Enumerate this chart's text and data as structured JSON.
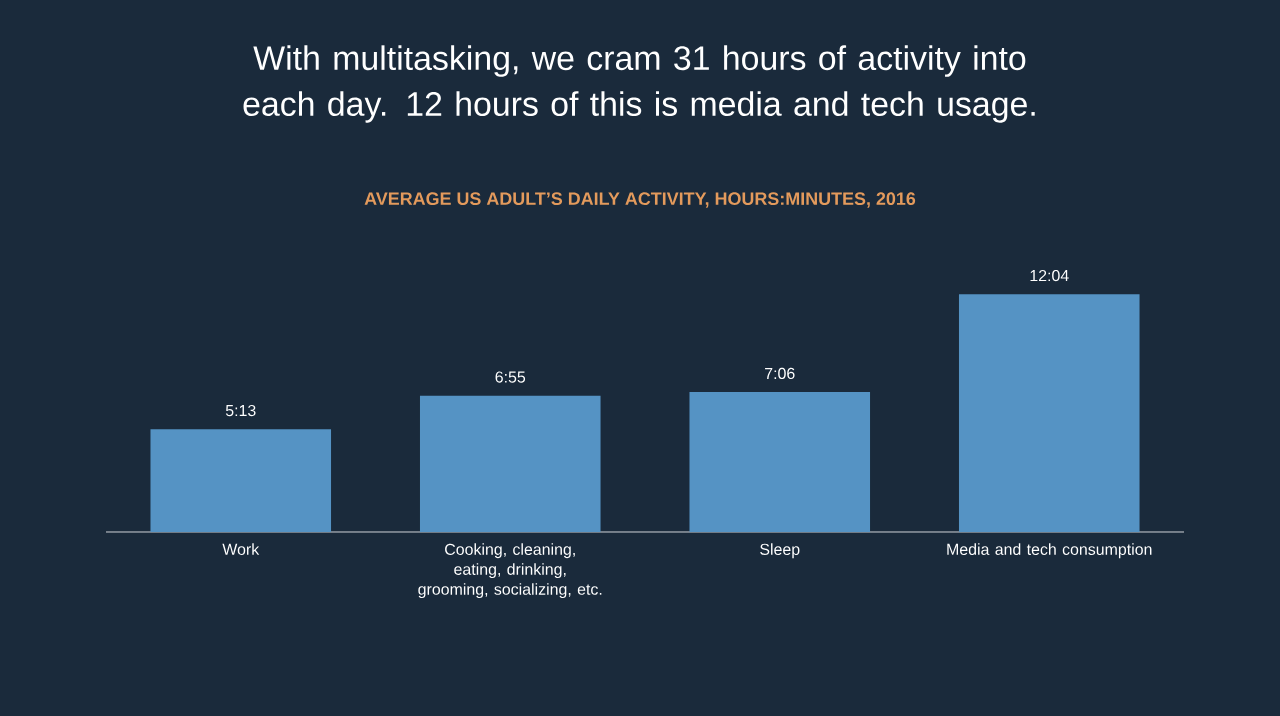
{
  "chart_data": {
    "type": "bar",
    "title": "With multitasking, we cram 31 hours of activity into each day. 12 hours of this is media and tech usage.",
    "subtitle": "AVERAGE US ADULT’S DAILY ACTIVITY, HOURS:MINUTES, 2016",
    "categories": [
      "Work",
      "Cooking, cleaning, eating, drinking, grooming, socializing, etc.",
      "Sleep",
      "Media and tech consumption"
    ],
    "values": [
      5.2167,
      6.9167,
      7.1,
      12.0667
    ],
    "value_labels": [
      "5:13",
      "6:55",
      "7:06",
      "12:04"
    ],
    "color": "#5593c4"
  }
}
